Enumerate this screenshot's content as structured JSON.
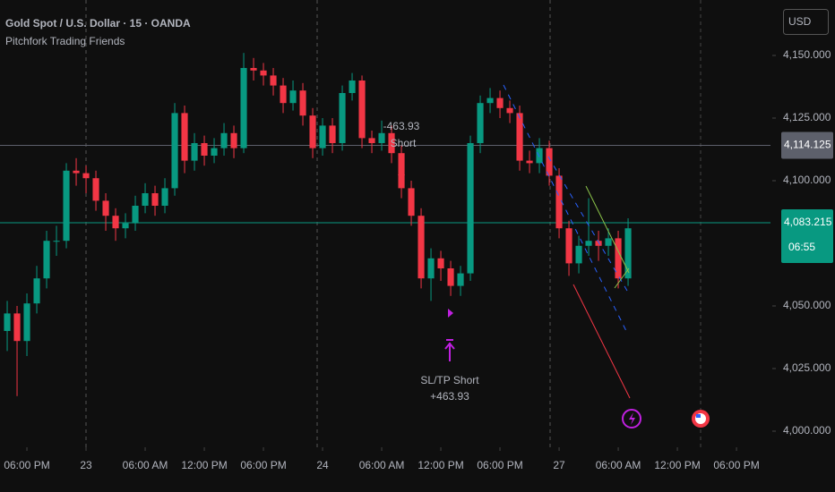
{
  "header": {
    "symbol": "Gold Spot / U.S. Dollar · 15 · OANDA",
    "indicator": "Pitchfork Trading Friends",
    "currency": "USD"
  },
  "chart_data": {
    "type": "candlestick",
    "up_color": "#089981",
    "down_color": "#f23645",
    "x": [
      -2,
      -1,
      0,
      1,
      2,
      3,
      4,
      5,
      6,
      7,
      8,
      9,
      10,
      11,
      12,
      13,
      14,
      15,
      16,
      17,
      18,
      19,
      20,
      21,
      22,
      23,
      24,
      25,
      26,
      27,
      28,
      29,
      30,
      31,
      32,
      33,
      34,
      35,
      36,
      37,
      38,
      39,
      40,
      41,
      42,
      43,
      44,
      45,
      46,
      47,
      48,
      49,
      50,
      51,
      52,
      53,
      54,
      55,
      56,
      57,
      58,
      59,
      60,
      61
    ],
    "open": [
      4040,
      4047,
      4036,
      4051,
      4061,
      4076,
      4076,
      4104,
      4103,
      4101,
      4092,
      4086,
      4081,
      4083,
      4090,
      4095,
      4090,
      4097,
      4127,
      4108,
      4115,
      4110,
      4113,
      4119,
      4113,
      4145,
      4144,
      4142,
      4138,
      4131,
      4136,
      4126,
      4113,
      4122,
      4115,
      4135,
      4140,
      4117,
      4115,
      4119,
      4111,
      4097,
      4086,
      4061,
      4069,
      4065,
      4058,
      4063,
      4115,
      4131,
      4133,
      4129,
      4127,
      4108,
      4107,
      4113,
      4102,
      4081,
      4067,
      4074,
      4076,
      4074,
      4077,
      4061
    ],
    "high": [
      4052,
      4050,
      4055,
      4066,
      4080,
      4082,
      4107,
      4109,
      4106,
      4104,
      4095,
      4089,
      4087,
      4094,
      4099,
      4098,
      4101,
      4131,
      4130,
      4119,
      4118,
      4117,
      4123,
      4122,
      4151,
      4149,
      4147,
      4145,
      4141,
      4140,
      4139,
      4129,
      4125,
      4125,
      4138,
      4143,
      4142,
      4120,
      4124,
      4122,
      4114,
      4100,
      4089,
      4073,
      4072,
      4068,
      4066,
      4118,
      4134,
      4137,
      4136,
      4132,
      4130,
      4112,
      4117,
      4116,
      4105,
      4084,
      4078,
      4093,
      4080,
      4081,
      4080,
      4085
    ],
    "low": [
      4032,
      4014,
      4030,
      4047,
      4057,
      4070,
      4073,
      4098,
      4095,
      4088,
      4080,
      4076,
      4077,
      4080,
      4087,
      4086,
      4087,
      4094,
      4103,
      4104,
      4106,
      4107,
      4110,
      4109,
      4111,
      4140,
      4138,
      4134,
      4127,
      4128,
      4122,
      4109,
      4110,
      4111,
      4112,
      4132,
      4113,
      4111,
      4112,
      4107,
      4093,
      4082,
      4057,
      4052,
      4060,
      4054,
      4054,
      4060,
      4111,
      4127,
      4125,
      4123,
      4104,
      4103,
      4103,
      4098,
      4077,
      4062,
      4063,
      4070,
      4068,
      4070,
      4057,
      4058
    ],
    "close": [
      4047,
      4036,
      4051,
      4061,
      4076,
      4076,
      4104,
      4103,
      4101,
      4092,
      4086,
      4081,
      4083,
      4090,
      4095,
      4090,
      4097,
      4127,
      4108,
      4115,
      4110,
      4113,
      4119,
      4113,
      4145,
      4144,
      4142,
      4138,
      4131,
      4136,
      4126,
      4113,
      4122,
      4115,
      4135,
      4140,
      4117,
      4115,
      4119,
      4111,
      4097,
      4086,
      4061,
      4069,
      4065,
      4058,
      4063,
      4115,
      4131,
      4133,
      4129,
      4127,
      4108,
      4107,
      4113,
      4102,
      4081,
      4067,
      4074,
      4076,
      4074,
      4077,
      4061,
      4081
    ],
    "xlim": [
      -2.73,
      75.45
    ],
    "xticks": [
      {
        "value": 0,
        "label": "06:00 PM"
      },
      {
        "value": 6,
        "label": "23"
      },
      {
        "value": 12,
        "label": "06:00 AM"
      },
      {
        "value": 18,
        "label": "12:00 PM"
      },
      {
        "value": 24,
        "label": "06:00 PM"
      },
      {
        "value": 30,
        "label": "24"
      },
      {
        "value": 36,
        "label": "06:00 AM"
      },
      {
        "value": 42,
        "label": "12:00 PM"
      },
      {
        "value": 48,
        "label": "06:00 PM"
      },
      {
        "value": 54,
        "label": "27"
      },
      {
        "value": 60,
        "label": "06:00 AM"
      },
      {
        "value": 66,
        "label": "12:00 PM"
      },
      {
        "value": 72,
        "label": "06:00 PM"
      }
    ],
    "ylim": [
      3993.57,
      4172.14
    ],
    "yticks": [
      {
        "value": 4000,
        "label": "4,000.000"
      },
      {
        "value": 4025,
        "label": "4,025.000"
      },
      {
        "value": 4050,
        "label": "4,050.000"
      },
      {
        "value": 4100,
        "label": "4,100.000"
      },
      {
        "value": 4125,
        "label": "4,125.000"
      },
      {
        "value": 4150,
        "label": "4,150.000"
      }
    ],
    "grid": false,
    "price_lines": [
      {
        "value": 4114.125,
        "label": "4,114.125",
        "color": "#5d606b"
      },
      {
        "value": 4083.215,
        "label": "4,083.215",
        "color": "#089981"
      }
    ],
    "countdown": "06:55",
    "annotations": [
      "-463.93",
      "Short",
      "SL/TP Short",
      "+463.93"
    ]
  }
}
